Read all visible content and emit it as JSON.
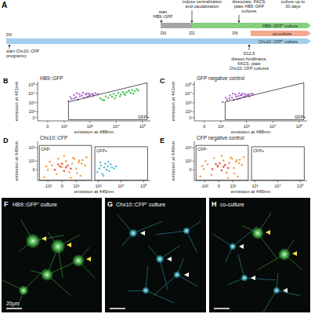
{
  "timeline": {
    "panel": "A",
    "day_start": "D0",
    "days": [
      "D0",
      "D2",
      "D6"
    ],
    "events_top": [
      {
        "lines": [
          "start",
          "HB9::GFP"
        ]
      },
      {
        "lines": [
          "induce ventralization",
          "and caudalization"
        ]
      },
      {
        "lines": [
          "dissociate, FACS,",
          "plate HB9::GFP",
          "cultures"
        ]
      },
      {
        "lines": [
          "culture up to",
          "30 days"
        ]
      }
    ],
    "event_pregnancy": [
      "start Chx10::CFP",
      "pregnancy"
    ],
    "dissect_day": "D12.5",
    "event_dissect": [
      "dissect hindbrains,",
      "FACS, plate",
      "Chx10::CFP cultures"
    ],
    "cultures": [
      {
        "label": "HB9::GFP⁺ culture",
        "color": "#86cf7e"
      },
      {
        "label": "co-culture",
        "color": "#f4a98f"
      },
      {
        "label": "Chx10::CFP⁺ culture",
        "color": "#a3cdec"
      }
    ]
  },
  "chart_data": [
    {
      "type": "scatter",
      "panel": "B",
      "title": "HB9::GFP",
      "log": true,
      "xlabel": "emission at 488nm",
      "ylabel": "emission at 461nm",
      "xlim": [
        -50,
        200000
      ],
      "ylim": [
        -50,
        200000
      ],
      "xticks": [
        0,
        {
          "value": 100,
          "label": "10²"
        },
        {
          "value": 1000,
          "label": "10³"
        },
        {
          "value": 10000,
          "label": "10⁴"
        },
        {
          "value": 100000,
          "label": "10⁵"
        }
      ],
      "yticks": [
        0,
        {
          "value": 100,
          "label": "10²"
        },
        {
          "value": 1000,
          "label": "10³"
        },
        {
          "value": 10000,
          "label": "10⁴"
        },
        {
          "value": 100000,
          "label": "10⁵"
        }
      ],
      "series": [
        {
          "color": "#a45cc4",
          "x": [
            150,
            200,
            260,
            300,
            350,
            420,
            500,
            600,
            700,
            800,
            900,
            1000,
            1200,
            1400,
            1600,
            2000,
            250,
            400,
            550,
            750,
            950,
            1300,
            180,
            320
          ],
          "values": [
            1500,
            2500,
            3000,
            4000,
            2200,
            5000,
            6000,
            3500,
            8000,
            4500,
            10000,
            7000,
            9000,
            6000,
            11000,
            9000,
            7000,
            9000,
            12000,
            10000,
            5500,
            8000,
            4000,
            11000
          ]
        },
        {
          "color": "#3dbb4a",
          "x": [
            2500,
            3000,
            4000,
            5000,
            6000,
            7000,
            8000,
            10000,
            12000,
            15000,
            18000,
            20000,
            25000,
            30000,
            35000,
            40000,
            50000,
            60000,
            3500,
            9000,
            14000,
            22000,
            45000,
            70000
          ],
          "values": [
            3000,
            2000,
            5000,
            3500,
            7000,
            4500,
            9000,
            6000,
            12000,
            8000,
            15000,
            10000,
            14000,
            20000,
            12000,
            25000,
            18000,
            30000,
            1800,
            3000,
            5000,
            7000,
            10000,
            22000
          ]
        }
      ],
      "gates": [
        {
          "label": "GFP+",
          "x": [
            150,
            150,
            150000,
            150000
          ],
          "y": [
            -30,
            1200,
            150000,
            -30
          ]
        }
      ]
    },
    {
      "type": "scatter",
      "panel": "C",
      "title": "GFP negative control",
      "log": true,
      "xlabel": "emission at 488nm",
      "ylabel": "emission at 461nm",
      "xlim": [
        -50,
        200000
      ],
      "ylim": [
        -50,
        200000
      ],
      "xticks": [
        0,
        {
          "value": 100,
          "label": "10²"
        },
        {
          "value": 1000,
          "label": "10³"
        },
        {
          "value": 10000,
          "label": "10⁴"
        },
        {
          "value": 100000,
          "label": "10⁵"
        }
      ],
      "yticks": [
        0,
        {
          "value": 100,
          "label": "10²"
        },
        {
          "value": 1000,
          "label": "10³"
        },
        {
          "value": 10000,
          "label": "10⁴"
        },
        {
          "value": 100000,
          "label": "10⁵"
        }
      ],
      "series": [
        {
          "color": "#a45cc4",
          "x": [
            120,
            180,
            220,
            280,
            330,
            400,
            480,
            560,
            650,
            760,
            880,
            1000,
            1150,
            1300,
            1500,
            1800,
            230,
            380,
            520,
            700,
            900,
            1200,
            160,
            300,
            450,
            600
          ],
          "values": [
            1200,
            2000,
            2800,
            3500,
            2000,
            4500,
            5500,
            3000,
            7000,
            4000,
            9000,
            6000,
            8000,
            5000,
            10000,
            8500,
            6000,
            8000,
            11000,
            9500,
            5000,
            7500,
            3500,
            10000,
            2500,
            6500
          ]
        }
      ],
      "gates": [
        {
          "label": "GFP+",
          "x": [
            150,
            150,
            150000,
            150000
          ],
          "y": [
            -30,
            1200,
            150000,
            -30
          ]
        }
      ]
    },
    {
      "type": "scatter",
      "panel": "D",
      "title": "Chx10::CFP",
      "log": true,
      "xlabel": "emission at 445nm",
      "ylabel": "emission at 640nm",
      "xlim": [
        -300,
        200000
      ],
      "ylim": [
        -150,
        3000
      ],
      "xticks": [
        {
          "value": -100,
          "label": "-10²"
        },
        0,
        {
          "value": 100,
          "label": "10²"
        },
        {
          "value": 1000,
          "label": "10³"
        },
        {
          "value": 10000,
          "label": "10⁴"
        },
        {
          "value": 100000,
          "label": "10⁵"
        }
      ],
      "yticks": [
        0,
        {
          "value": 100,
          "label": "10²"
        },
        {
          "value": 1000,
          "label": "10³"
        }
      ],
      "series": [
        {
          "color": "#f39033",
          "x": [
            -150,
            -100,
            -60,
            -30,
            0,
            20,
            40,
            60,
            80,
            100,
            130,
            160,
            200,
            250,
            300,
            -80,
            -20,
            50,
            110,
            180,
            -120,
            10,
            70,
            140
          ],
          "values": [
            -80,
            0,
            40,
            -40,
            20,
            100,
            -20,
            60,
            150,
            10,
            80,
            -60,
            120,
            40,
            200,
            90,
            160,
            -90,
            -30,
            60,
            30,
            250,
            180,
            110
          ]
        },
        {
          "color": "#e0331f",
          "x": [
            -40,
            -10,
            10,
            30,
            50,
            0,
            20,
            -20
          ],
          "values": [
            0,
            30,
            -10,
            40,
            10,
            60,
            20,
            50
          ]
        },
        {
          "color": "#3fb3d6",
          "x": [
            900,
            1100,
            1300,
            1500,
            1800,
            2000,
            2300,
            2600,
            3000,
            3500,
            4000,
            5000,
            1200,
            1700,
            2800,
            6000
          ],
          "values": [
            -20,
            10,
            40,
            -40,
            20,
            60,
            0,
            30,
            -10,
            50,
            20,
            10,
            80,
            -60,
            90,
            30
          ]
        }
      ],
      "gates": [
        {
          "label": "CFP-",
          "x": [
            -250,
            -250,
            500,
            500
          ],
          "y": [
            -140,
            1500,
            1500,
            -140
          ]
        },
        {
          "label": "CFP+",
          "x": [
            700,
            700,
            150000,
            150000
          ],
          "y": [
            -140,
            1200,
            1200,
            -140
          ]
        }
      ]
    },
    {
      "type": "scatter",
      "panel": "E",
      "title": "CFP negative control",
      "log": true,
      "xlabel": "emission at 445nm",
      "ylabel": "emission at 640nm",
      "xlim": [
        -300,
        200000
      ],
      "ylim": [
        -150,
        3000
      ],
      "xticks": [
        {
          "value": -100,
          "label": "-10²"
        },
        0,
        {
          "value": 100,
          "label": "10²"
        },
        {
          "value": 1000,
          "label": "10³"
        },
        {
          "value": 10000,
          "label": "10⁴"
        },
        {
          "value": 100000,
          "label": "10⁵"
        }
      ],
      "yticks": [
        0,
        {
          "value": 100,
          "label": "10²"
        },
        {
          "value": 1000,
          "label": "10³"
        }
      ],
      "series": [
        {
          "color": "#f39033",
          "x": [
            -160,
            -110,
            -70,
            -40,
            -5,
            25,
            45,
            65,
            90,
            110,
            140,
            170,
            210,
            260,
            320,
            -90,
            -25,
            55,
            120,
            190,
            -130,
            15,
            75,
            150
          ],
          "values": [
            -70,
            5,
            50,
            -50,
            25,
            110,
            -25,
            70,
            160,
            15,
            90,
            -70,
            130,
            45,
            210,
            100,
            170,
            -95,
            -35,
            65,
            35,
            260,
            190,
            120
          ]
        },
        {
          "color": "#e0331f",
          "x": [
            -35,
            -5,
            15,
            35,
            55,
            5,
            25,
            -15
          ],
          "values": [
            5,
            35,
            -5,
            45,
            15,
            65,
            25,
            55
          ]
        }
      ],
      "gates": [
        {
          "label": "CFP-",
          "x": [
            -250,
            -250,
            500,
            500
          ],
          "y": [
            -140,
            1500,
            1500,
            -140
          ]
        },
        {
          "label": "CFP+",
          "x": [
            700,
            700,
            150000,
            150000
          ],
          "y": [
            -140,
            1200,
            1200,
            -140
          ]
        }
      ]
    }
  ],
  "images": [
    {
      "panel": "F",
      "title": "HB9::GFP⁺ culture",
      "scale_bar": "20µm"
    },
    {
      "panel": "G",
      "title": "Chx10::CFP⁺ culture"
    },
    {
      "panel": "H",
      "title": "co-culture"
    }
  ]
}
